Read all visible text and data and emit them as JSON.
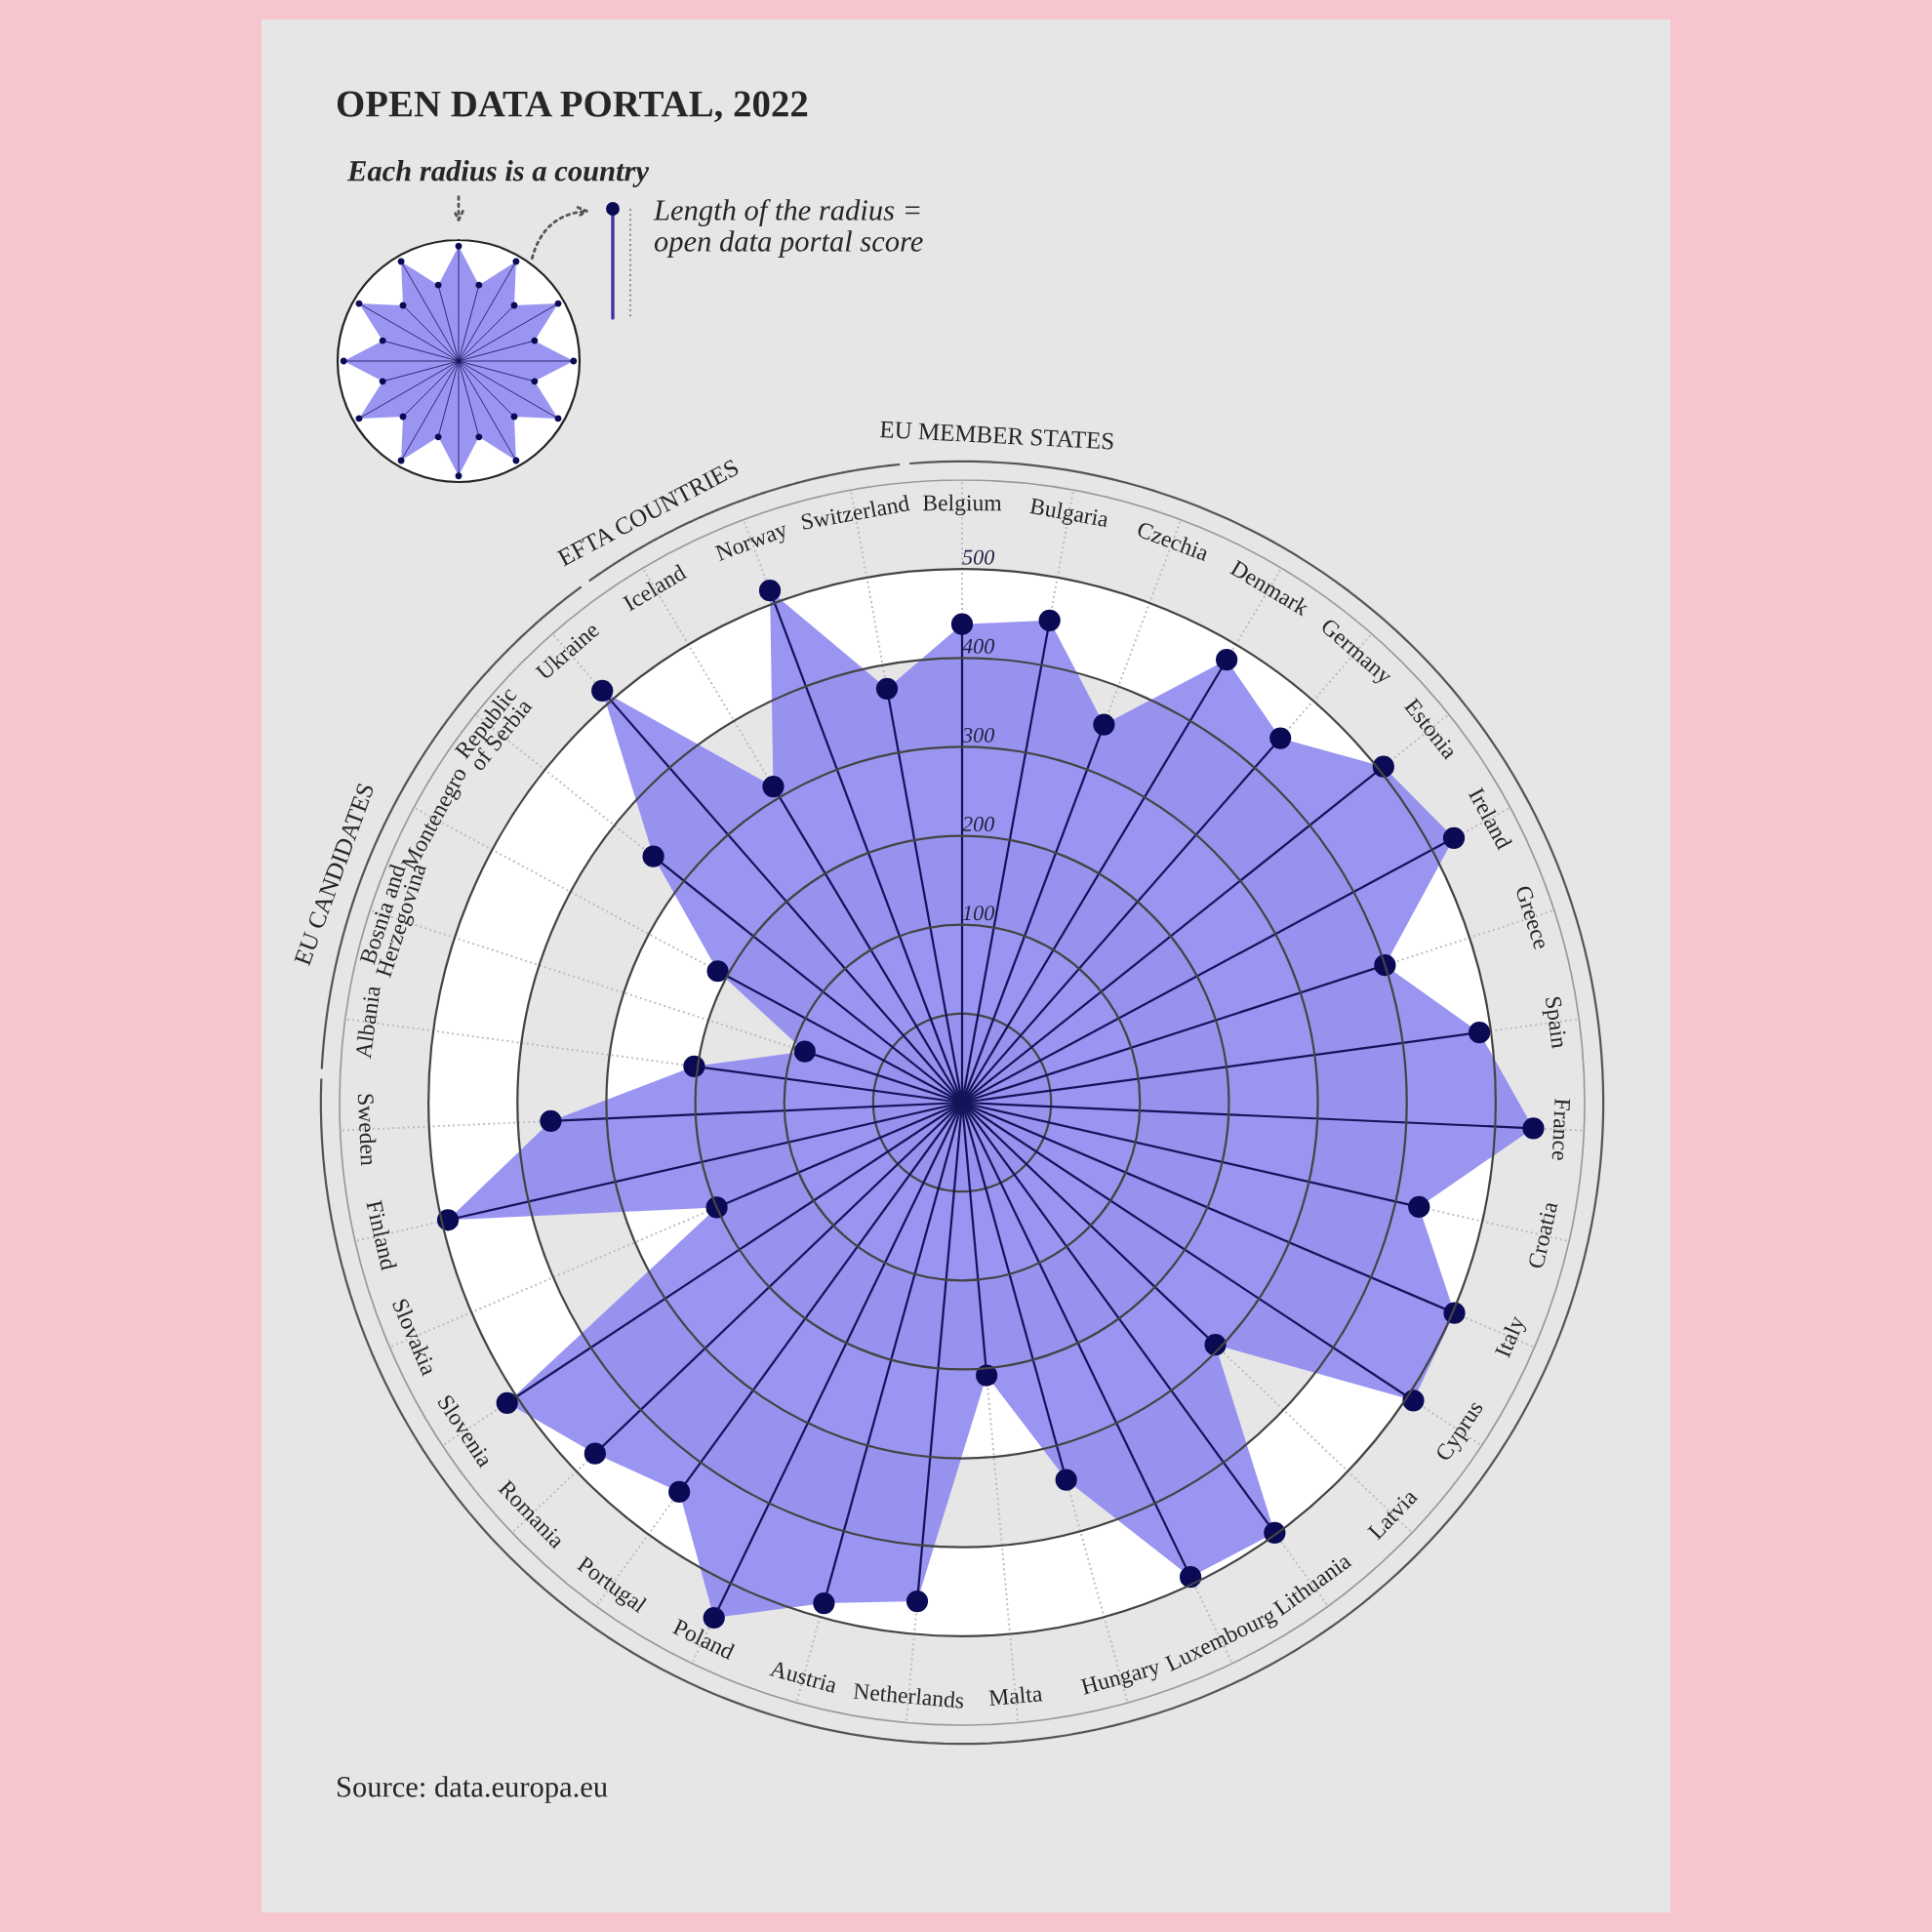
{
  "chart_data": {
    "type": "radar",
    "title": "OPEN DATA PORTAL, 2022",
    "categories": [
      "Belgium",
      "Bulgaria",
      "Czechia",
      "Denmark",
      "Germany",
      "Estonia",
      "Ireland",
      "Greece",
      "Spain",
      "France",
      "Croatia",
      "Italy",
      "Cyprus",
      "Latvia",
      "Lithuania",
      "Luxembourg",
      "Hungary",
      "Malta",
      "Netherlands",
      "Austria",
      "Poland",
      "Portugal",
      "Romania",
      "Slovenia",
      "Slovakia",
      "Finland",
      "Sweden",
      "Albania",
      "Bosnia and\nHerzegovina",
      "Montenegro",
      "Republic\nof Serbia",
      "Ukraine",
      "Iceland",
      "Norway",
      "Switzerland"
    ],
    "series": [
      {
        "color": "#8a82f0",
        "values": [
          438,
          451,
          354,
          480,
          444,
          506,
          528,
          400,
          487,
          543,
          427,
          502,
          508,
          294,
          498,
          492,
          340,
          208,
          463,
          484,
          543,
          441,
          471,
          513,
          200,
          493,
          363,
          204,
          86,
          212,
          344,
          515,
          314,
          515,
          373
        ]
      }
    ],
    "ylim": [
      -100,
      600
    ],
    "yticks": [
      100,
      200,
      300,
      400,
      500
    ],
    "grid": true,
    "marker": "circle",
    "annotations": [
      "EU MEMBER STATES",
      "EFTA COUNTRIES",
      "EU CANDIDATES",
      "Each radius is a country",
      "Length of the radius =\nopen data portal score",
      "Source: data.europa.eu"
    ]
  }
}
